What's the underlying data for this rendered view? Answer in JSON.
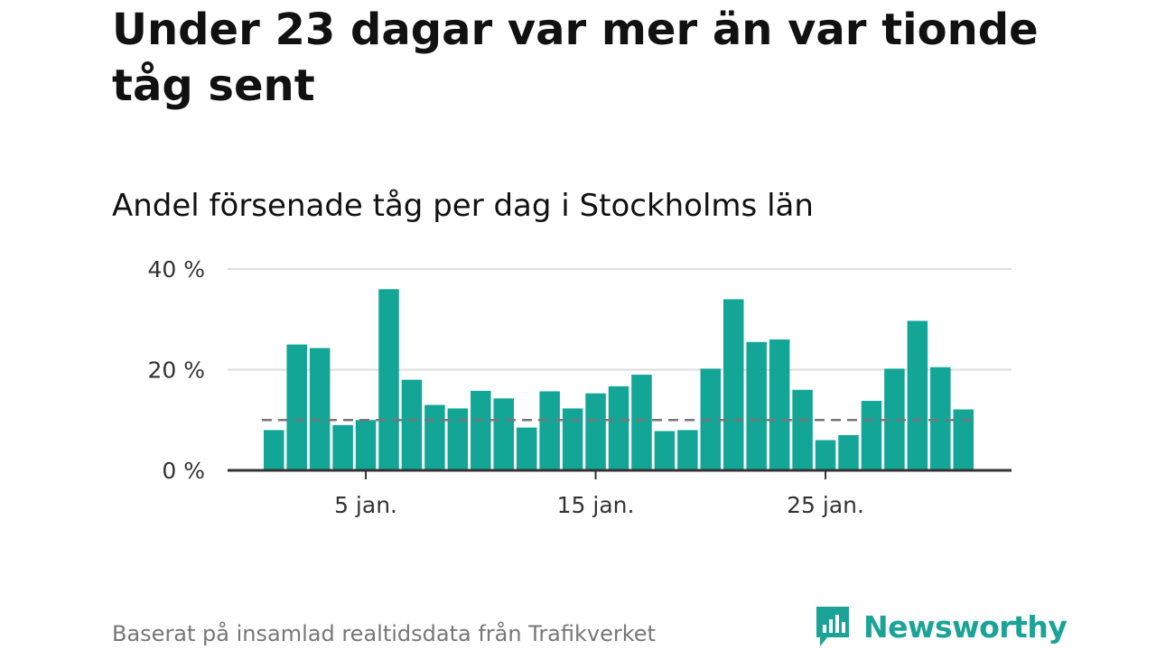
{
  "title": "Under 23 dagar var mer än var tionde tåg sent",
  "chart_data": {
    "type": "bar",
    "subtitle": "Andel försenade tåg per dag i Stockholms län",
    "x": [
      1,
      2,
      3,
      4,
      5,
      6,
      7,
      8,
      9,
      10,
      11,
      12,
      13,
      14,
      15,
      16,
      17,
      18,
      19,
      20,
      21,
      22,
      23,
      24,
      25,
      26,
      27,
      28,
      29,
      30,
      31
    ],
    "values": [
      8,
      25,
      24.3,
      9,
      10,
      36,
      18,
      13,
      12.3,
      15.8,
      14.3,
      8.5,
      15.7,
      12.3,
      15.3,
      16.7,
      19,
      7.8,
      8,
      20.2,
      34,
      25.5,
      26,
      16,
      6,
      7,
      13.8,
      20.2,
      29.7,
      20.5,
      12.1
    ],
    "ylim": [
      0,
      40
    ],
    "yticks": [
      0,
      20,
      40
    ],
    "ytick_labels": [
      "0 %",
      "20 %",
      "40 %"
    ],
    "xticks": [
      5,
      15,
      25
    ],
    "xtick_labels": [
      "5 jan.",
      "15 jan.",
      "25 jan."
    ],
    "reference_line": 10,
    "grid": true,
    "bar_color": "#13a596",
    "reference_line_color": "#777777"
  },
  "footer": {
    "source": "Baserat på insamlad realtidsdata från Trafikverket",
    "logo_text": "Newsworthy",
    "logo_color": "#1aa396"
  }
}
